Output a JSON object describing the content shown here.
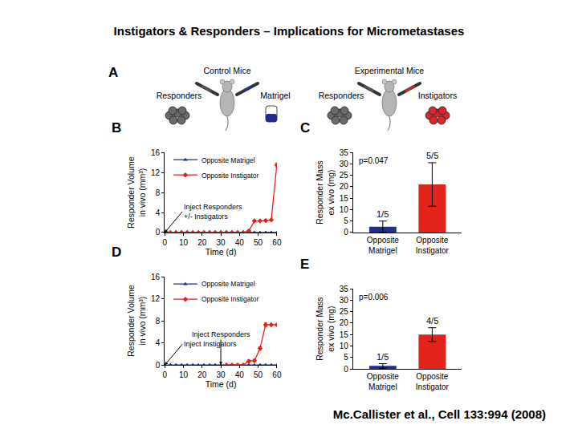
{
  "title": "Instigators & Responders – Implications for Micrometastases",
  "citation": "Mc.Callister et al., Cell 133:994  (2008)",
  "diagram": {
    "label": "A",
    "control": {
      "title": "Control Mice",
      "left": "Responders",
      "right": "Matrigel"
    },
    "experimental": {
      "title": "Experimental Mice",
      "left": "Responders",
      "right": "Instigators"
    }
  },
  "chart_data": [
    {
      "type": "line",
      "title": "B",
      "x": [
        0,
        3,
        6,
        9,
        12,
        15,
        18,
        21,
        24,
        27,
        30,
        33,
        36,
        39,
        42,
        45,
        48,
        51,
        54,
        57,
        60
      ],
      "xlim": [
        0,
        60
      ],
      "xticks": [
        0,
        10,
        20,
        30,
        40,
        50,
        60
      ],
      "ylim": [
        0,
        16
      ],
      "yticks": [
        0,
        4,
        8,
        12,
        16
      ],
      "x_label": "Time (d)",
      "y_label": [
        "Responder Volume",
        "in vivo (mm³)"
      ],
      "legend": "upper left",
      "series": [
        {
          "name": "Opposite Matrigel",
          "color": "#1f2d8c",
          "marker": "triangle",
          "values": [
            0,
            0,
            0,
            0,
            0,
            0,
            0,
            0,
            0,
            0,
            0,
            0,
            0,
            0,
            0,
            0,
            0,
            0,
            0,
            0,
            0
          ]
        },
        {
          "name": "Opposite Instigator",
          "color": "#e2231a",
          "marker": "diamond",
          "values": [
            0,
            0,
            0,
            0,
            0,
            0,
            0,
            0,
            0,
            0,
            0,
            0,
            0,
            0,
            0,
            0.3,
            2.3,
            2.3,
            2.4,
            2.5,
            13.5
          ],
          "errors": [
            null,
            null,
            null,
            null,
            null,
            null,
            null,
            null,
            null,
            null,
            null,
            null,
            null,
            null,
            null,
            null,
            null,
            null,
            null,
            null,
            0.4
          ]
        }
      ],
      "annotations": [
        {
          "text": [
            "Inject Responders",
            "+/- Instigators"
          ],
          "x": 0,
          "y": 0
        }
      ]
    },
    {
      "type": "bar",
      "title": "C",
      "categories": [
        "Opposite Matrigel",
        "Opposite Instigator"
      ],
      "values": [
        2.5,
        21
      ],
      "errors": [
        2.5,
        9.5
      ],
      "colors": [
        "#1f2d8c",
        "#e2231a"
      ],
      "ylim": [
        0,
        35
      ],
      "yticks": [
        0,
        5,
        10,
        15,
        20,
        25,
        30,
        35
      ],
      "y_label": [
        "Responder Mass",
        "ex vivo (mg)"
      ],
      "annotations": [
        {
          "text": [
            "p=0.047"
          ]
        }
      ],
      "bar_notes": [
        "1/5",
        "5/5"
      ]
    },
    {
      "type": "line",
      "title": "D",
      "x": [
        0,
        3,
        6,
        9,
        12,
        15,
        18,
        21,
        24,
        27,
        30,
        33,
        36,
        39,
        42,
        45,
        48,
        51,
        54,
        57,
        60
      ],
      "xlim": [
        0,
        60
      ],
      "xticks": [
        0,
        10,
        20,
        30,
        40,
        50,
        60
      ],
      "ylim": [
        0,
        16
      ],
      "yticks": [
        0,
        4,
        8,
        12,
        16
      ],
      "x_label": "Time (d)",
      "y_label": [
        "Responder Volume",
        "in vivo (mm³)"
      ],
      "legend": "upper left",
      "series": [
        {
          "name": "Opposite Matrigel",
          "color": "#1f2d8c",
          "marker": "triangle",
          "values": [
            0,
            0,
            0,
            0,
            0,
            0,
            0,
            0,
            0,
            0,
            0,
            0,
            0,
            0,
            0,
            0,
            0,
            0,
            0,
            0,
            0
          ]
        },
        {
          "name": "Opposite Instigator",
          "color": "#e2231a",
          "marker": "diamond",
          "values": [
            null,
            null,
            null,
            null,
            null,
            null,
            null,
            null,
            null,
            null,
            null,
            0,
            0,
            0,
            0,
            0.7,
            0.8,
            3.0,
            7.3,
            7.3,
            7.3
          ],
          "errors": [
            null,
            null,
            null,
            null,
            null,
            null,
            null,
            null,
            null,
            null,
            null,
            null,
            null,
            null,
            null,
            0.2,
            0.2,
            0.3,
            0.3,
            null,
            null
          ]
        }
      ],
      "annotations": [
        {
          "text": [
            "Inject Instigators"
          ],
          "x": 0,
          "y": 0
        },
        {
          "text": [
            "Inject Responders"
          ],
          "x": 30,
          "y": 0
        }
      ]
    },
    {
      "type": "bar",
      "title": "E",
      "categories": [
        "Opposite Matrigel",
        "Opposite Instigator"
      ],
      "values": [
        1.3,
        15
      ],
      "errors": [
        1.0,
        3.0
      ],
      "colors": [
        "#1f2d8c",
        "#e2231a"
      ],
      "ylim": [
        0,
        35
      ],
      "yticks": [
        0,
        5,
        10,
        15,
        20,
        25,
        30,
        35
      ],
      "y_label": [
        "Responder Mass",
        "ex vivo (mg)"
      ],
      "annotations": [
        {
          "text": [
            "p=0.006"
          ]
        }
      ],
      "bar_notes": [
        "1/5",
        "4/5"
      ]
    }
  ]
}
